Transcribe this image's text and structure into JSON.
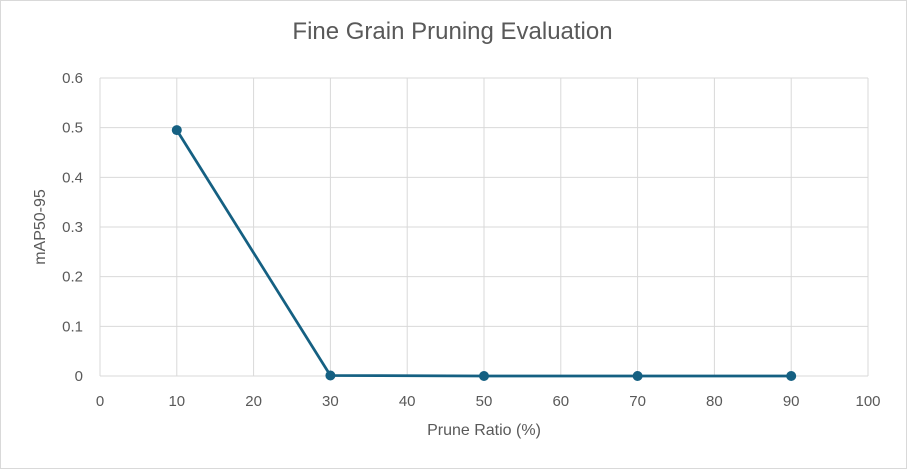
{
  "chart_data": {
    "type": "scatter",
    "title": "Fine Grain Pruning Evaluation",
    "xlabel": "Prune Ratio (%)",
    "ylabel": "mAP50-95",
    "xlim": [
      0,
      100
    ],
    "ylim": [
      0,
      0.6
    ],
    "x_ticks": [
      "0",
      "10",
      "20",
      "30",
      "40",
      "50",
      "60",
      "70",
      "80",
      "90",
      "100"
    ],
    "y_ticks": [
      "0",
      "0.1",
      "0.2",
      "0.3",
      "0.4",
      "0.5",
      "0.6"
    ],
    "grid": true,
    "series": [
      {
        "color": "#156082",
        "x": [
          10,
          30,
          50,
          70,
          90
        ],
        "y": [
          0.495,
          0.001,
          0.0,
          0.0,
          0.0
        ]
      }
    ]
  }
}
